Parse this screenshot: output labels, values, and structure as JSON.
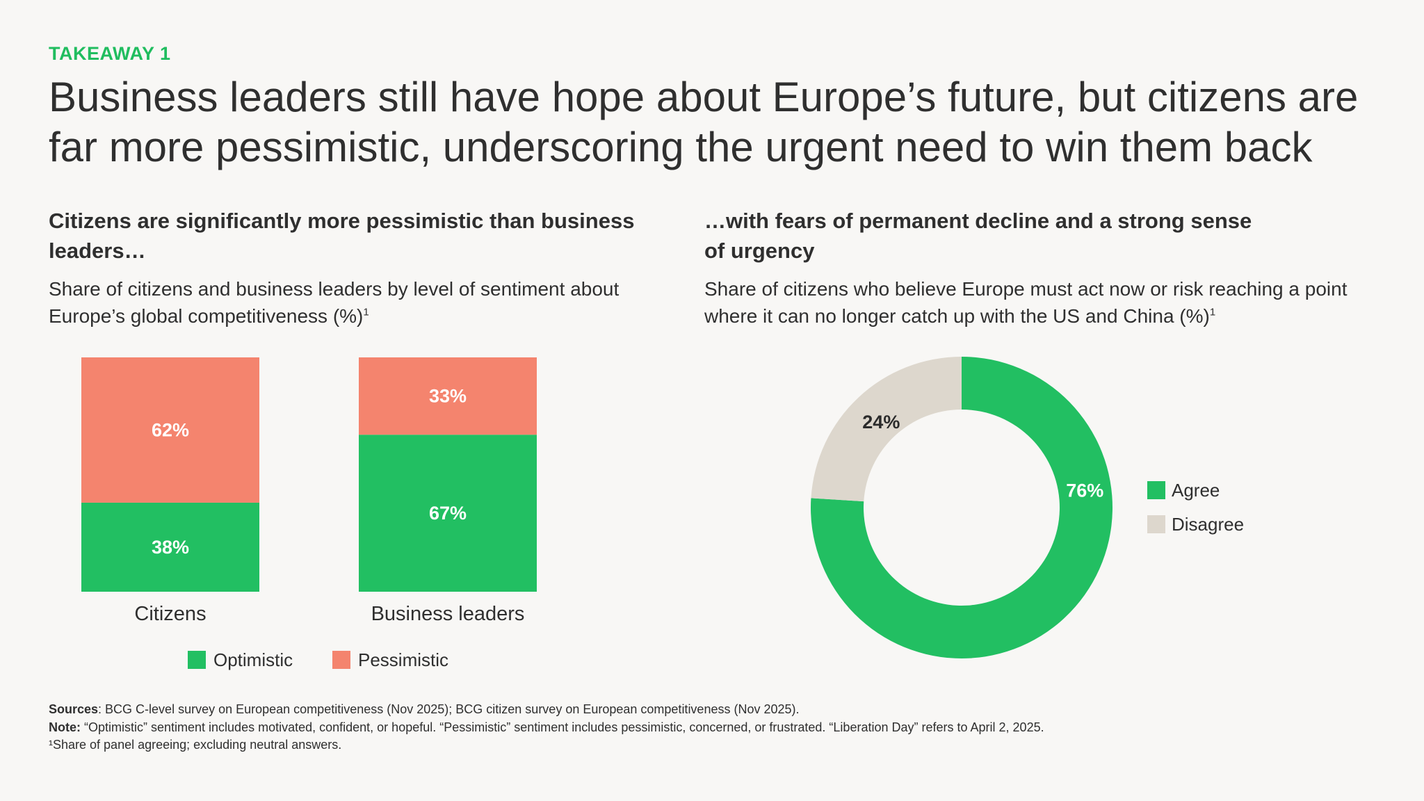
{
  "eyebrow": "TAKEAWAY 1",
  "headline": "Business leaders still have hope about Europe’s future, but citizens are far more pessimistic, underscoring the urgent need to win them back",
  "left_panel": {
    "title": "Citizens are significantly more pessimistic than business leaders…",
    "description": "Share of citizens and business leaders by level of sentiment about Europe’s global competitiveness (%)",
    "footnote_ref": "1"
  },
  "right_panel": {
    "title": "…with fears of permanent decline and a strong sense of urgency",
    "description": "Share of citizens who believe Europe must act now or risk reaching a point where it can no longer catch up with the US and China (%)",
    "footnote_ref": "1"
  },
  "colors": {
    "optimistic": "#22bf62",
    "pessimistic": "#f4846e",
    "agree": "#22bf62",
    "disagree": "#ddd7cd",
    "accent": "#20bd5f"
  },
  "chart_data": [
    {
      "type": "bar",
      "stacked": true,
      "categories": [
        "Citizens",
        "Business leaders"
      ],
      "series": [
        {
          "name": "Optimistic",
          "values": [
            38,
            67
          ],
          "labels": [
            "38%",
            "67%"
          ]
        },
        {
          "name": "Pessimistic",
          "values": [
            62,
            33
          ],
          "labels": [
            "62%",
            "33%"
          ]
        }
      ],
      "ylim": [
        0,
        100
      ],
      "legend": [
        "Optimistic",
        "Pessimistic"
      ],
      "legend_position": "bottom"
    },
    {
      "type": "pie",
      "donut": true,
      "slices": [
        {
          "name": "Agree",
          "value": 76,
          "label": "76%"
        },
        {
          "name": "Disagree",
          "value": 24,
          "label": "24%"
        }
      ],
      "legend": [
        "Agree",
        "Disagree"
      ],
      "legend_position": "right"
    }
  ],
  "footer": {
    "sources_label": "Sources",
    "sources_text": ": BCG C-level survey on European competitiveness (Nov 2025); BCG citizen survey on European competitiveness (Nov 2025).",
    "note_label": "Note:",
    "note_text": " “Optimistic” sentiment includes motivated, confident, or hopeful. “Pessimistic” sentiment includes pessimistic, concerned, or frustrated. “Liberation Day” refers to April 2, 2025.",
    "footnote_mark": "¹",
    "footnote_text": "Share of panel agreeing; excluding neutral answers."
  }
}
